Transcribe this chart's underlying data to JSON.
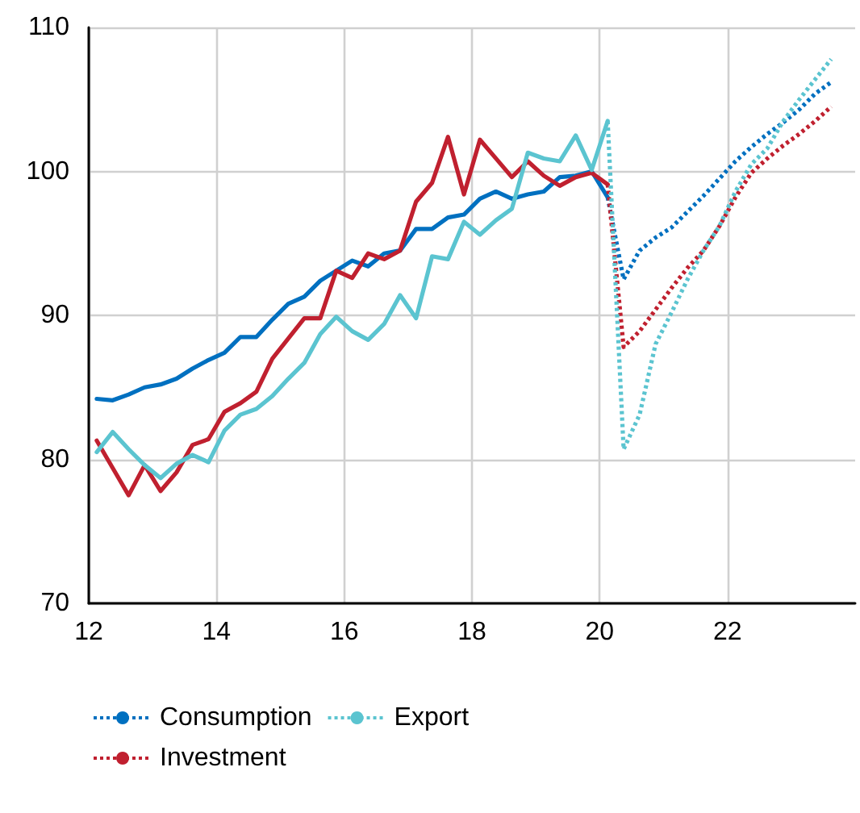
{
  "chart_data": {
    "type": "line",
    "xlim": [
      12,
      24
    ],
    "xticks": [
      12,
      14,
      16,
      18,
      20,
      22
    ],
    "ylim": [
      70,
      110
    ],
    "yticks": [
      70,
      80,
      90,
      100,
      110
    ],
    "grid": true,
    "legend": "bottom left",
    "marker": "none",
    "series": [
      {
        "color": "#0070c0",
        "line_style": "solid",
        "x": [
          12.125,
          12.375,
          12.625,
          12.875,
          13.125,
          13.375,
          13.625,
          13.875,
          14.125,
          14.375,
          14.625,
          14.875,
          15.125,
          15.375,
          15.625,
          15.875,
          16.125,
          16.375,
          16.625,
          16.875,
          17.125,
          17.375,
          17.625,
          17.875,
          18.125,
          18.375,
          18.625,
          18.875,
          19.125,
          19.375,
          19.625,
          19.875,
          20.125
        ],
        "values": [
          84.2,
          84.1,
          84.5,
          85.0,
          85.2,
          85.6,
          86.3,
          86.9,
          87.4,
          88.5,
          88.5,
          89.7,
          90.8,
          91.3,
          92.4,
          93.1,
          93.8,
          93.4,
          94.3,
          94.5,
          96.0,
          96.0,
          96.8,
          97.0,
          98.1,
          98.6,
          98.1,
          98.4,
          98.6,
          99.6,
          99.7,
          100.0,
          98.2
        ]
      },
      {
        "color": "#c0202f",
        "line_style": "solid",
        "x": [
          12.125,
          12.375,
          12.625,
          12.875,
          13.125,
          13.375,
          13.625,
          13.875,
          14.125,
          14.375,
          14.625,
          14.875,
          15.125,
          15.375,
          15.625,
          15.875,
          16.125,
          16.375,
          16.625,
          16.875,
          17.125,
          17.375,
          17.625,
          17.875,
          18.125,
          18.375,
          18.625,
          18.875,
          19.125,
          19.375,
          19.625,
          19.875,
          20.125
        ],
        "values": [
          81.3,
          79.4,
          77.5,
          79.6,
          77.8,
          79.1,
          81.0,
          81.4,
          83.3,
          83.9,
          84.7,
          87.0,
          88.4,
          89.8,
          89.8,
          93.1,
          92.6,
          94.3,
          93.9,
          94.5,
          97.9,
          99.2,
          102.4,
          98.4,
          102.2,
          100.9,
          99.6,
          100.7,
          99.7,
          99.0,
          99.6,
          99.9,
          99.1
        ]
      },
      {
        "color": "#5bc4d0",
        "line_style": "solid",
        "x": [
          12.125,
          12.375,
          12.625,
          12.875,
          13.125,
          13.375,
          13.625,
          13.875,
          14.125,
          14.375,
          14.625,
          14.875,
          15.125,
          15.375,
          15.625,
          15.875,
          16.125,
          16.375,
          16.625,
          16.875,
          17.125,
          17.375,
          17.625,
          17.875,
          18.125,
          18.375,
          18.625,
          18.875,
          19.125,
          19.375,
          19.625,
          19.875,
          20.125
        ],
        "values": [
          80.5,
          81.9,
          80.7,
          79.6,
          78.7,
          79.7,
          80.3,
          79.8,
          82.0,
          83.1,
          83.5,
          84.4,
          85.6,
          86.7,
          88.7,
          89.9,
          88.9,
          88.3,
          89.4,
          91.4,
          89.8,
          94.1,
          93.9,
          96.5,
          95.6,
          96.6,
          97.4,
          101.3,
          100.9,
          100.7,
          102.5,
          100.1,
          103.5
        ]
      },
      {
        "name": "Consumption",
        "color": "#0070c0",
        "line_style": "dotted",
        "x": [
          20.125,
          20.375,
          20.625,
          20.875,
          21.125,
          21.375,
          21.625,
          21.875,
          22.125,
          22.375,
          22.625,
          22.875,
          23.125,
          23.375,
          23.625
        ],
        "values": [
          98.2,
          92.5,
          94.5,
          95.4,
          96.1,
          97.2,
          98.3,
          99.5,
          100.7,
          101.7,
          102.6,
          103.4,
          104.3,
          105.4,
          106.2
        ]
      },
      {
        "name": "Investment",
        "color": "#c0202f",
        "line_style": "dotted",
        "x": [
          20.125,
          20.375,
          20.625,
          20.875,
          21.125,
          21.375,
          21.625,
          21.875,
          22.125,
          22.375,
          22.625,
          22.875,
          23.125,
          23.375,
          23.625
        ],
        "values": [
          99.1,
          87.8,
          88.9,
          90.4,
          91.9,
          93.3,
          94.5,
          96.2,
          98.2,
          99.9,
          100.9,
          101.8,
          102.6,
          103.5,
          104.5
        ]
      },
      {
        "name": "Export",
        "color": "#5bc4d0",
        "line_style": "dotted",
        "x": [
          20.125,
          20.375,
          20.625,
          20.875,
          21.125,
          21.375,
          21.625,
          21.875,
          22.125,
          22.375,
          22.625,
          22.875,
          23.125,
          23.375,
          23.625
        ],
        "values": [
          103.5,
          80.7,
          83.1,
          88.0,
          90.2,
          92.5,
          94.5,
          96.2,
          98.6,
          100.5,
          101.6,
          103.5,
          105.0,
          106.4,
          107.8
        ]
      }
    ]
  }
}
